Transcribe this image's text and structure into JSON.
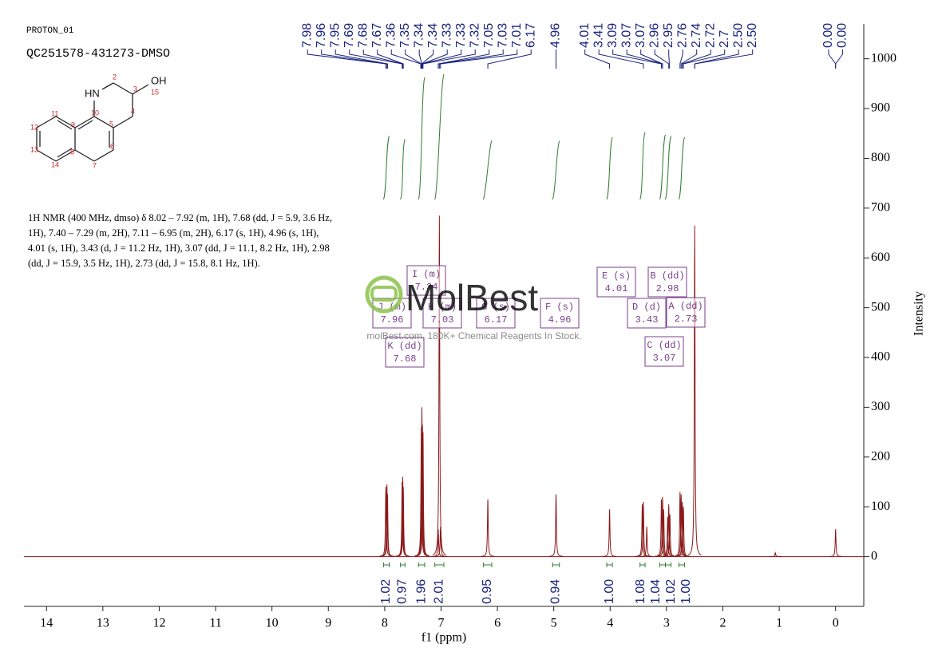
{
  "header": {
    "experiment": "PROTON_01",
    "sample": "QC251578-431273-DMSO"
  },
  "molecule": {
    "nh": "HN",
    "oh": "OH",
    "numbers": [
      "2",
      "3",
      "4",
      "5",
      "6",
      "7",
      "8",
      "9",
      "10",
      "11",
      "12",
      "13",
      "14",
      "15"
    ]
  },
  "description": [
    "1H NMR (400 MHz, dmso) δ 8.02 – 7.92 (m, 1H), 7.68 (dd, J = 5.9, 3.6 Hz,",
    "1H), 7.40 – 7.29 (m, 2H), 7.11 – 6.95 (m, 2H), 6.17 (s, 1H), 4.96 (s, 1H),",
    "4.01 (s, 1H), 3.43 (d, J = 11.2 Hz, 1H), 3.07 (dd, J = 11.1, 8.2 Hz, 1H), 2.98",
    "(dd, J = 15.9, 3.5 Hz, 1H), 2.73 (dd, J = 15.8, 8.1 Hz, 1H)."
  ],
  "watermark": {
    "brand": "MolBest",
    "tagline": "molBest.com, 180K+ Chemical Reagents In Stock."
  },
  "chart_data": {
    "type": "nmr",
    "xlabel": "f1 (ppm)",
    "ylabel": "Intensity",
    "color": "#8b1a1a",
    "xlim": [
      14.4,
      -0.5
    ],
    "ylim": [
      -100,
      1070
    ],
    "xticks": [
      14,
      13,
      12,
      11,
      10,
      9,
      8,
      7,
      6,
      5,
      4,
      3,
      2,
      1,
      0
    ],
    "yticks": [
      0,
      100,
      200,
      300,
      400,
      500,
      600,
      700,
      800,
      900,
      1000
    ],
    "peaks": {
      "x": [
        7.98,
        7.96,
        7.95,
        7.69,
        7.68,
        7.67,
        7.35,
        7.34,
        7.33,
        7.32,
        7.05,
        7.03,
        7.01,
        6.17,
        4.96,
        4.01,
        3.43,
        3.41,
        3.35,
        3.09,
        3.07,
        3.05,
        2.98,
        2.96,
        2.94,
        2.76,
        2.74,
        2.72,
        2.7,
        2.5,
        1.07,
        0
      ],
      "values": [
        140,
        145,
        125,
        150,
        160,
        140,
        260,
        300,
        265,
        250,
        55,
        685,
        60,
        115,
        125,
        95,
        105,
        110,
        60,
        115,
        120,
        95,
        80,
        105,
        85,
        130,
        125,
        110,
        100,
        665,
        8,
        55
      ]
    },
    "peak_labels": [
      7.98,
      7.96,
      7.95,
      7.69,
      7.68,
      7.67,
      7.36,
      7.35,
      7.34,
      7.34,
      7.33,
      7.33,
      7.32,
      7.05,
      7.03,
      7.01,
      6.17,
      4.96,
      4.01,
      3.41,
      3.09,
      3.07,
      3.07,
      2.96,
      2.95,
      2.76,
      2.74,
      2.72,
      2.7,
      {
        "value": 2.5,
        "label": "2.50"
      },
      {
        "value": 2.5,
        "label": "2.50"
      },
      {
        "value": 0,
        "label": "0.00"
      },
      {
        "value": 0,
        "label": "0.00"
      }
    ],
    "integrals": [
      {
        "from": 8.02,
        "to": 7.92,
        "value": 1.02
      },
      {
        "from": 7.72,
        "to": 7.64,
        "value": 0.97
      },
      {
        "from": 7.4,
        "to": 7.29,
        "value": 1.96
      },
      {
        "from": 7.11,
        "to": 6.95,
        "value": 2.01
      },
      {
        "from": 6.25,
        "to": 6.1,
        "value": 0.95
      },
      {
        "from": 5.02,
        "to": 4.9,
        "value": 0.94
      },
      {
        "from": 4.06,
        "to": 3.96,
        "value": 1,
        "label": "1.00"
      },
      {
        "from": 3.47,
        "to": 3.38,
        "value": 1.08
      },
      {
        "from": 3.12,
        "to": 3.02,
        "value": 1.04
      },
      {
        "from": 3.02,
        "to": 2.92,
        "value": 1.02
      },
      {
        "from": 2.78,
        "to": 2.68,
        "value": 1,
        "label": "1.00"
      }
    ],
    "multiplets": [
      {
        "label": "A (dd)",
        "shift": 2.73
      },
      {
        "label": "B (dd)",
        "shift": 2.98
      },
      {
        "label": "C (dd)",
        "shift": 3.07
      },
      {
        "label": "D (d)",
        "shift": 3.43
      },
      {
        "label": "E (s)",
        "shift": 4.01
      },
      {
        "label": "F (s)",
        "shift": 4.96
      },
      {
        "label": "G (s)",
        "shift": 6.17
      },
      {
        "label": "H (m)",
        "shift": 7.03
      },
      {
        "label": "I (m)",
        "shift": 7.34
      },
      {
        "label": "J (m)",
        "shift": 7.96
      },
      {
        "label": "K (dd)",
        "shift": 7.68
      }
    ]
  }
}
